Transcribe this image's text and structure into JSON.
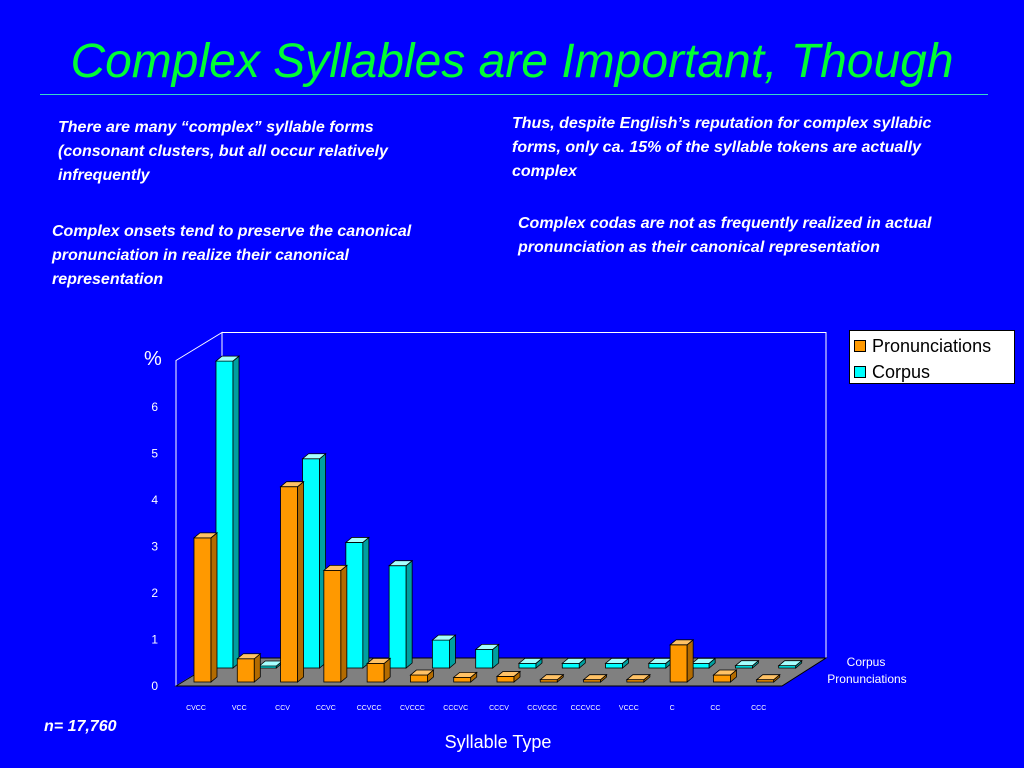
{
  "slide": {
    "title": "Complex Syllables are Important, Though",
    "notes": [
      "There are many “complex” syllable forms (consonant clusters, but all occur relatively infrequently",
      "Thus, despite English’s reputation for complex syllabic forms, only ca. 15% of the syllable tokens are actually complex",
      "Complex onsets tend to preserve the canonical  pronunciation in realize their canonical representation",
      "Complex codas are not as frequently realized in actual pronunciation as their canonical representation"
    ],
    "sample_size": "n= 17,760"
  },
  "colors": {
    "background": "#0000ff",
    "title": "#00ff33",
    "pronunciations": "#ff9900",
    "corpus": "#00ffff"
  },
  "chart_data": {
    "type": "bar",
    "title": "",
    "xlabel": "Syllable Type",
    "ylabel": "%",
    "ylim": [
      0,
      7
    ],
    "yticks": [
      "0",
      "1",
      "2",
      "3",
      "4",
      "5",
      "6"
    ],
    "categories": [
      "CVCC",
      "VCC",
      "CCV",
      "CCVC",
      "CCVCC",
      "CVCCC",
      "CCCVC",
      "CCCV",
      "CCVCCC",
      "CCCVCC",
      "VCCC",
      "C",
      "CC",
      "CCC"
    ],
    "series": [
      {
        "name": "Pronunciations",
        "values": [
          3.1,
          0.5,
          4.2,
          2.4,
          0.4,
          0.15,
          0.1,
          0.12,
          0.05,
          0.05,
          0.05,
          0.8,
          0.15,
          0.05
        ]
      },
      {
        "name": "Corpus",
        "values": [
          6.6,
          0,
          4.5,
          2.7,
          2.2,
          0.6,
          0.4,
          0.1,
          0.1,
          0.1,
          0.1,
          0.1,
          0.05,
          0.05
        ]
      }
    ],
    "depth_labels": [
      "Corpus",
      "Pronunciations"
    ],
    "legend": {
      "position": "top-right",
      "entries": [
        "Pronunciations",
        "Corpus"
      ]
    },
    "grid": false
  }
}
